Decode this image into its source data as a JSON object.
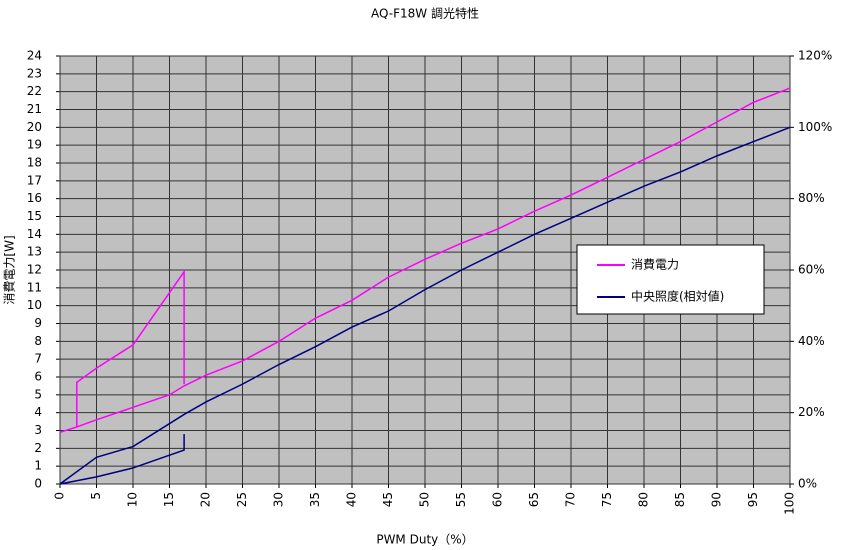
{
  "chart_data": {
    "type": "line",
    "title": "AQ-F18W  調光特性",
    "xlabel": "PWM Duty（%）",
    "ylabel": "消費電力[W]",
    "xlim": [
      0,
      100
    ],
    "xticks": [
      0,
      5,
      10,
      15,
      20,
      25,
      30,
      35,
      40,
      45,
      50,
      55,
      60,
      65,
      70,
      75,
      80,
      85,
      90,
      95,
      100
    ],
    "ylim": [
      0,
      24
    ],
    "yticks": [
      0,
      1,
      2,
      3,
      4,
      5,
      6,
      7,
      8,
      9,
      10,
      11,
      12,
      13,
      14,
      15,
      16,
      17,
      18,
      19,
      20,
      21,
      22,
      23,
      24
    ],
    "y2lim": [
      0,
      120
    ],
    "y2ticks": [
      {
        "value": 0,
        "label": "0%"
      },
      {
        "value": 20,
        "label": "20%"
      },
      {
        "value": 40,
        "label": "40%"
      },
      {
        "value": 60,
        "label": "60%"
      },
      {
        "value": 80,
        "label": "80%"
      },
      {
        "value": 100,
        "label": "100%"
      },
      {
        "value": 120,
        "label": "120%"
      }
    ],
    "grid": true,
    "legend": "right",
    "series": [
      {
        "name": "消費電力",
        "color": "#ff00ff",
        "x": [
          0,
          2.3,
          2.3,
          5,
          10,
          17,
          17,
          null,
          2.3,
          5,
          10,
          15,
          17,
          20,
          25,
          30,
          35,
          40,
          45,
          50,
          55,
          60,
          65,
          70,
          75,
          80,
          85,
          90,
          95,
          100
        ],
        "values": [
          2.9,
          3.2,
          5.7,
          6.5,
          7.8,
          11.9,
          5.6,
          null,
          3.2,
          3.6,
          4.3,
          5.0,
          5.5,
          6.1,
          6.9,
          8.0,
          9.3,
          10.3,
          11.6,
          12.6,
          13.5,
          14.3,
          15.3,
          16.2,
          17.2,
          18.2,
          19.2,
          20.3,
          21.4,
          22.2
        ]
      },
      {
        "name": "中央照度(相対値)",
        "color": "#000080",
        "axis": "y2",
        "x": [
          0,
          5,
          10,
          17,
          17,
          null,
          0,
          5,
          10,
          17,
          20,
          25,
          30,
          35,
          40,
          45,
          50,
          55,
          60,
          65,
          70,
          75,
          80,
          85,
          90,
          95,
          100
        ],
        "values": [
          0,
          2,
          4.5,
          9.5,
          14,
          null,
          0,
          7.5,
          10.5,
          19.5,
          23,
          28,
          33.5,
          38.5,
          44,
          48.5,
          54.5,
          60,
          65,
          70,
          74.5,
          79,
          83.5,
          87.5,
          92,
          96,
          100
        ]
      }
    ]
  }
}
